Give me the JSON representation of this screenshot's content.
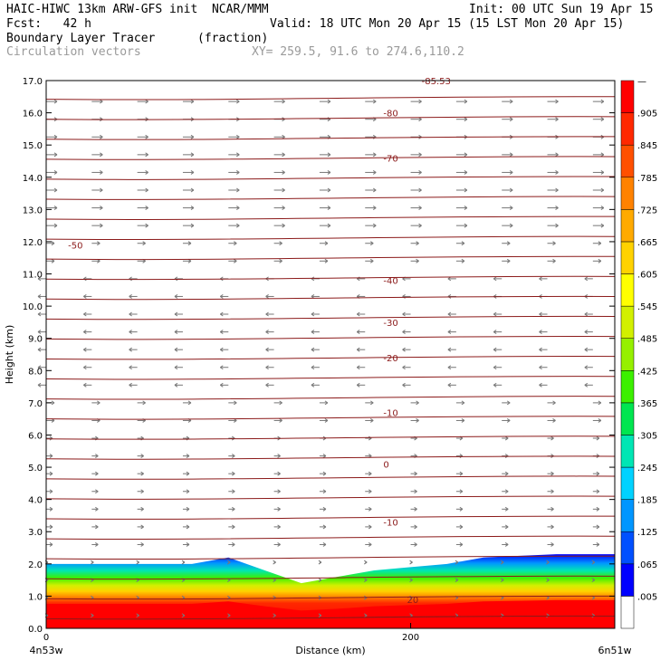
{
  "header": {
    "model": "HAIC-HIWC 13km ARW-GFS init  NCAR/MMM",
    "init": "Init: 00 UTC Sun 19 Apr 15",
    "fcst": "Fcst:   42 h",
    "valid": "Valid: 18 UTC Mon 20 Apr 15 (15 LST Mon 20 Apr 15)",
    "field": "Boundary Layer Tracer",
    "units": "(fraction)",
    "vectors": "Circulation vectors",
    "xy": "XY= 259.5, 91.6 to 274.6,110.2"
  },
  "colors": {
    "contour": "#8b1a1a",
    "vector": "#777777",
    "accent_red": "#ff0000"
  },
  "chart_data": {
    "type": "heatmap",
    "title": "Boundary Layer Tracer",
    "xlabel": "Distance (km)",
    "ylabel": "Height (km)",
    "xlim": [
      0,
      312
    ],
    "ylim": [
      0,
      17
    ],
    "x_ticks": [
      0,
      200
    ],
    "x_tick_labels": [
      "0",
      "200"
    ],
    "x_end_labels": [
      "4n53w",
      "6n51w"
    ],
    "y_ticks": [
      0,
      1,
      2,
      3,
      4,
      5,
      6,
      7,
      8,
      9,
      10,
      11,
      12,
      13,
      14,
      15,
      16,
      17
    ],
    "y_tick_labels": [
      "0.0",
      "1.0",
      "2.0",
      "3.0",
      "4.0",
      "5.0",
      "6.0",
      "7.0",
      "8.0",
      "9.0",
      "10.0",
      "11.0",
      "12.0",
      "13.0",
      "14.0",
      "15.0",
      "16.0",
      "17.0"
    ],
    "colorbar": {
      "labels": [
        ".005",
        ".065",
        ".125",
        ".185",
        ".245",
        ".305",
        ".365",
        ".425",
        ".485",
        ".545",
        ".605",
        ".665",
        ".725",
        ".785",
        ".845",
        ".905",
        "—"
      ],
      "colors": [
        "#ffffff",
        "#0000ff",
        "#0050ff",
        "#0096ff",
        "#00d2ff",
        "#00e6b4",
        "#00e650",
        "#3cf000",
        "#96f000",
        "#d2f000",
        "#ffff00",
        "#ffd200",
        "#ffaa00",
        "#ff8200",
        "#ff5000",
        "#ff2800",
        "#ff0000"
      ]
    },
    "tracer_top_km": {
      "x": [
        0,
        40,
        80,
        100,
        120,
        140,
        160,
        180,
        200,
        220,
        240,
        260,
        280,
        300,
        312
      ],
      "y": [
        2.0,
        2.0,
        2.0,
        2.2,
        1.8,
        1.4,
        1.6,
        1.8,
        1.9,
        2.0,
        2.2,
        2.25,
        2.3,
        2.3,
        2.3
      ]
    },
    "temperature_contours": [
      {
        "label": "-80",
        "height_km": 16.0
      },
      {
        "label": "-70",
        "height_km": 14.6
      },
      {
        "label": "-50",
        "height_km": 11.9
      },
      {
        "label": "-40",
        "height_km": 10.8
      },
      {
        "label": "-30",
        "height_km": 9.5
      },
      {
        "label": "-20",
        "height_km": 8.4
      },
      {
        "label": "-10",
        "height_km": 6.7
      },
      {
        "label": "0",
        "height_km": 5.1
      },
      {
        "label": "-10",
        "height_km": 3.3
      },
      {
        "label": "20",
        "height_km": 0.9
      }
    ],
    "partial_label": "-85.53"
  }
}
